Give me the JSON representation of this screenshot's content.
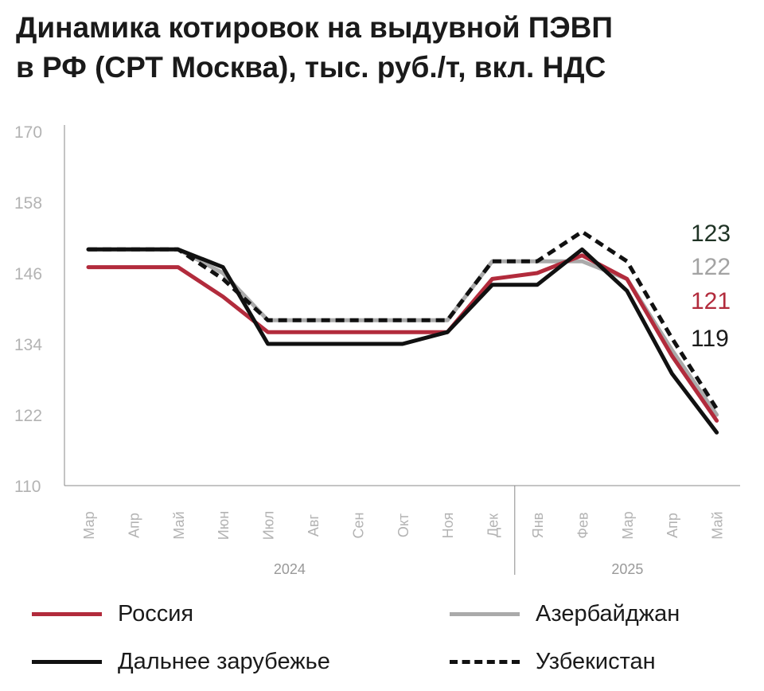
{
  "title": {
    "line1": "Динамика котировок на выдувной ПЭВП",
    "line2": "в РФ (СРТ Москва), тыс. руб./т, вкл. НДС"
  },
  "chart_data": {
    "type": "line",
    "title": "Динамика котировок на выдувной ПЭВП в РФ (СРТ Москва), тыс. руб./т, вкл. НДС",
    "categories": [
      "Мар",
      "Апр",
      "Май",
      "Июн",
      "Июл",
      "Авг",
      "Сен",
      "Окт",
      "Ноя",
      "Дек",
      "Янв",
      "Фев",
      "Мар",
      "Апр",
      "Май"
    ],
    "year_groups": [
      {
        "label": "2024",
        "from": 0,
        "to": 9
      },
      {
        "label": "2025",
        "from": 10,
        "to": 14
      }
    ],
    "ylim": [
      110,
      170
    ],
    "yticks": [
      110,
      122,
      134,
      146,
      158,
      170
    ],
    "grid": false,
    "legend_position": "bottom",
    "series": [
      {
        "name": "Азербайджан",
        "color": "#aaaaaa",
        "dash": "solid",
        "values": [
          150,
          150,
          150,
          146,
          138,
          138,
          138,
          138,
          138,
          148,
          148,
          148,
          145,
          133,
          122
        ]
      },
      {
        "name": "Россия",
        "color": "#b22b3c",
        "dash": "solid",
        "values": [
          147,
          147,
          147,
          142,
          136,
          136,
          136,
          136,
          136,
          145,
          146,
          149,
          145,
          132,
          121
        ]
      },
      {
        "name": "Дальнее зарубежье",
        "color": "#111111",
        "dash": "solid",
        "values": [
          150,
          150,
          150,
          147,
          134,
          134,
          134,
          134,
          136,
          144,
          144,
          150,
          143,
          129,
          119
        ]
      },
      {
        "name": "Узбекистан",
        "color": "#111111",
        "dash": "dashed",
        "values": [
          150,
          150,
          150,
          145,
          138,
          138,
          138,
          138,
          138,
          148,
          148,
          153,
          148,
          135,
          123
        ]
      }
    ],
    "end_labels": [
      {
        "text": "123",
        "color": "#1f3325"
      },
      {
        "text": "122",
        "color": "#a3a3a3"
      },
      {
        "text": "121",
        "color": "#b22b3c"
      },
      {
        "text": "119",
        "color": "#1a1a1a"
      }
    ]
  },
  "legend": [
    {
      "label": "Россия",
      "color": "#b22b3c",
      "style": "solid"
    },
    {
      "label": "Азербайджан",
      "color": "#aaaaaa",
      "style": "solid"
    },
    {
      "label": "Дальнее зарубежье",
      "color": "#111111",
      "style": "solid"
    },
    {
      "label": "Узбекистан",
      "color": "#111111",
      "style": "dashed"
    }
  ]
}
